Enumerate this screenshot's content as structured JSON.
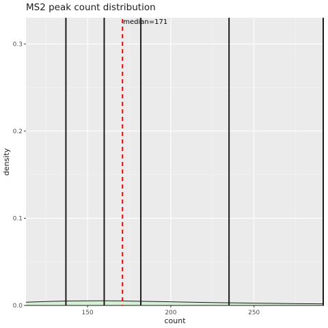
{
  "chart_data": {
    "type": "area",
    "title": "MS2 peak count distribution",
    "xlabel": "count",
    "ylabel": "density",
    "xlim": [
      113,
      292
    ],
    "ylim": [
      0,
      0.33
    ],
    "x_ticks": [
      150,
      200,
      250
    ],
    "y_ticks": [
      0.0,
      0.1,
      0.2,
      0.3
    ],
    "y_tick_labels": [
      "0.0",
      "0.1",
      "0.2",
      "0.3"
    ],
    "grid": true,
    "background": "#ebebeb",
    "density_fill": "#d4f0d4",
    "density_curve": {
      "x": [
        113,
        125,
        137,
        150,
        160,
        171,
        182,
        200,
        215,
        235,
        255,
        275,
        292
      ],
      "y": [
        0.0037,
        0.0045,
        0.0051,
        0.0053,
        0.0054,
        0.0052,
        0.0048,
        0.0042,
        0.0036,
        0.003,
        0.0025,
        0.0021,
        0.0019
      ]
    },
    "vertical_lines": [
      137,
      160,
      182,
      235,
      292
    ],
    "vertical_line_color": "#1a1a1a",
    "median": {
      "value": 171,
      "label": "median=171",
      "color": "#ee0000"
    }
  }
}
